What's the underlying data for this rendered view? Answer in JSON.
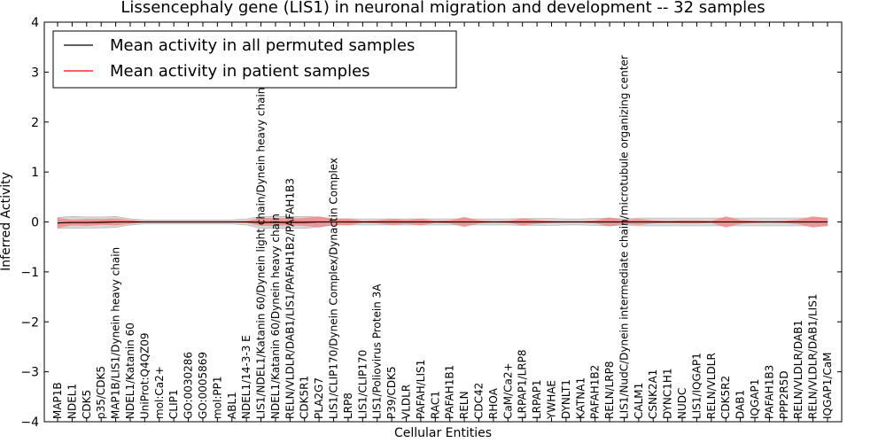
{
  "chart_data": {
    "type": "line",
    "title": "Lissencephaly gene (LIS1) in neuronal migration and development -- 32 samples",
    "xlabel": "Cellular Entities",
    "ylabel": "Inferred Activity",
    "ylim": [
      -4,
      4
    ],
    "yticks": [
      -4,
      -3,
      -2,
      -1,
      0,
      1,
      2,
      3,
      4
    ],
    "yticklabels": [
      "−4",
      "−3",
      "−2",
      "−1",
      "0",
      "1",
      "2",
      "3",
      "4"
    ],
    "legend": {
      "location": "top-left",
      "entries": [
        {
          "label": "Mean activity in all permuted samples",
          "color": "#000000"
        },
        {
          "label": "Mean activity in patient samples",
          "color": "#ff0000"
        }
      ]
    },
    "categories": [
      "MAP1B",
      "NDEL1",
      "CDK5",
      "p35/CDK5",
      "MAP1B/LIS1/Dynein heavy chain",
      "NDEL1/Katanin 60",
      "UniProt:Q4QZ09",
      "mol:Ca2+",
      "CLIP1",
      "GO:0030286",
      "GO:0005869",
      "mol:PP1",
      "ABL1",
      "NDEL1/14-3-3 E",
      "LIS1/NDEL1/Katanin 60/Dynein light chain/Dynein heavy chain",
      "NDEL1/Katanin 60/Dynein heavy chain",
      "RELN/VLDLR/DAB1/LIS1/PAFAH1B2/PAFAH1B3",
      "CDK5R1",
      "PLA2G7",
      "LIS1/CLIP170/Dynein Complex/Dynactin Complex",
      "LRP8",
      "LIS1/CLIP170",
      "LIS1/Poliovirus Protein 3A",
      "P39/CDK5",
      "VLDLR",
      "PAFAH/LIS1",
      "RAC1",
      "PAFAH1B1",
      "RELN",
      "CDC42",
      "RHOA",
      "CaM/Ca2+",
      "LRPAP1/LRP8",
      "LRPAP1",
      "YWHAE",
      "DYNLT1",
      "KATNA1",
      "PAFAH1B2",
      "RELN/LRP8",
      "LIS1/NudC/Dynein intermediate chain/microtubule organizing center",
      "CALM1",
      "CSNK2A1",
      "DYNC1H1",
      "NUDC",
      "LIS1/IQGAP1",
      "RELN/VLDLR",
      "CDK5R2",
      "DAB1",
      "IQGAP1",
      "PAFAH1B3",
      "PPP2R5D",
      "RELN/VLDLR/DAB1",
      "RELN/VLDLR/DAB1/LIS1",
      "IQGAP1/CaM"
    ],
    "series": [
      {
        "name": "Mean activity in patient samples",
        "color": "#ff0000",
        "band_color": "#f08080",
        "values": [
          -0.02,
          -0.01,
          -0.01,
          0,
          0,
          0,
          0,
          0,
          0,
          0,
          0,
          0,
          0,
          0,
          0,
          0,
          0,
          0,
          0,
          0,
          0,
          0,
          0,
          0,
          0,
          0,
          0,
          0,
          0,
          0,
          0,
          0,
          0,
          0,
          0,
          0,
          0,
          0,
          0,
          0,
          0,
          0,
          0,
          0,
          0,
          0,
          0,
          0,
          0,
          0,
          0,
          0,
          0,
          0
        ],
        "band_halfwidth": [
          0.1,
          0.06,
          0.07,
          0.06,
          0.07,
          0.04,
          0.01,
          0.01,
          0.01,
          0.01,
          0.01,
          0.01,
          0.01,
          0.02,
          0.08,
          0.08,
          0.07,
          0.08,
          0.11,
          0.06,
          0.07,
          0.02,
          0.03,
          0.06,
          0.04,
          0.07,
          0.02,
          0.03,
          0.1,
          0.03,
          0.01,
          0.02,
          0.07,
          0.04,
          0.02,
          0.01,
          0.01,
          0.03,
          0.09,
          0.04,
          0.06,
          0.03,
          0.02,
          0.03,
          0.03,
          0.02,
          0.11,
          0.04,
          0.02,
          0.01,
          0.02,
          0.05,
          0.11,
          0.08
        ]
      },
      {
        "name": "Mean activity in all permuted samples",
        "color": "#000000",
        "band_color": "#c8c8c8",
        "values": [
          -0.02,
          -0.01,
          -0.01,
          -0.01,
          0,
          0,
          0,
          0,
          0,
          0,
          0,
          0,
          0,
          0,
          -0.01,
          -0.01,
          -0.01,
          -0.01,
          0,
          0,
          0,
          0,
          0,
          0,
          0,
          0,
          0,
          0,
          0,
          0,
          0,
          0,
          0,
          0,
          0,
          0,
          0,
          0,
          0,
          0,
          0,
          0,
          0,
          0,
          0,
          0,
          0,
          0,
          0,
          0,
          0,
          0,
          0,
          0
        ],
        "band_halfwidth": [
          0.11,
          0.12,
          0.11,
          0.11,
          0.11,
          0.06,
          0.04,
          0.04,
          0.04,
          0.04,
          0.04,
          0.04,
          0.04,
          0.06,
          0.12,
          0.12,
          0.12,
          0.12,
          0.1,
          0.06,
          0.06,
          0.06,
          0.06,
          0.06,
          0.06,
          0.06,
          0.06,
          0.06,
          0.06,
          0.06,
          0.06,
          0.06,
          0.07,
          0.07,
          0.07,
          0.06,
          0.06,
          0.07,
          0.08,
          0.06,
          0.08,
          0.08,
          0.08,
          0.08,
          0.08,
          0.08,
          0.08,
          0.08,
          0.08,
          0.08,
          0.08,
          0.08,
          0.08,
          0.08
        ]
      }
    ]
  }
}
